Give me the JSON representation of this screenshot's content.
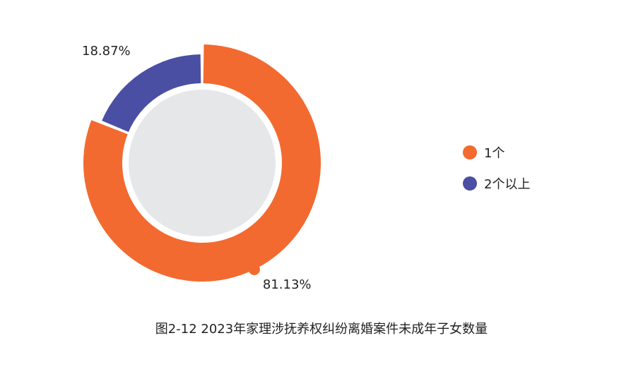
{
  "chart_data": {
    "type": "pie",
    "categories": [
      "1个",
      "2个以上"
    ],
    "values": [
      81.13,
      18.87
    ],
    "value_labels": [
      "81.13%",
      "18.87%"
    ],
    "colors": [
      "#F26A30",
      "#4A4FA3"
    ],
    "legend_position": "right"
  },
  "legend": {
    "items": [
      "1个",
      "2个以上"
    ]
  },
  "caption": "图2-12  2023年家理涉抚养权纠纷离婚案件未成年子女数量"
}
